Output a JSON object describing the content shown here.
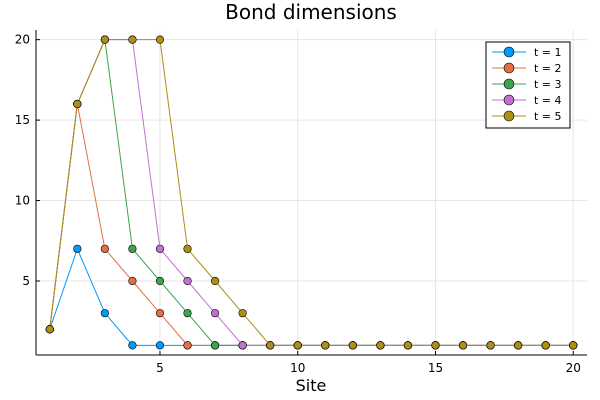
{
  "chart_data": {
    "type": "line",
    "title": "Bond dimensions",
    "xlabel": "Site",
    "ylabel": "",
    "xlim": [
      0.5,
      20.5
    ],
    "ylim": [
      0.4,
      20.6
    ],
    "xticks": [
      5,
      10,
      15,
      20
    ],
    "yticks": [
      5,
      10,
      15,
      20
    ],
    "grid": true,
    "legend_position": "top-right",
    "x": [
      1,
      2,
      3,
      4,
      5,
      6,
      7,
      8,
      9,
      10,
      11,
      12,
      13,
      14,
      15,
      16,
      17,
      18,
      19,
      20
    ],
    "series": [
      {
        "name": "t = 1",
        "color": "#009af9",
        "values": [
          2,
          7,
          3,
          1,
          1,
          1,
          1,
          1,
          1,
          1,
          1,
          1,
          1,
          1,
          1,
          1,
          1,
          1,
          1,
          1
        ]
      },
      {
        "name": "t = 2",
        "color": "#e26f46",
        "values": [
          2,
          16,
          7,
          5,
          3,
          1,
          1,
          1,
          1,
          1,
          1,
          1,
          1,
          1,
          1,
          1,
          1,
          1,
          1,
          1
        ]
      },
      {
        "name": "t = 3",
        "color": "#3da44d",
        "values": [
          2,
          16,
          20,
          7,
          5,
          3,
          1,
          1,
          1,
          1,
          1,
          1,
          1,
          1,
          1,
          1,
          1,
          1,
          1,
          1
        ]
      },
      {
        "name": "t = 4",
        "color": "#c271d2",
        "values": [
          2,
          16,
          20,
          20,
          7,
          5,
          3,
          1,
          1,
          1,
          1,
          1,
          1,
          1,
          1,
          1,
          1,
          1,
          1,
          1
        ]
      },
      {
        "name": "t = 5",
        "color": "#ac8e18",
        "values": [
          2,
          16,
          20,
          20,
          20,
          7,
          5,
          3,
          1,
          1,
          1,
          1,
          1,
          1,
          1,
          1,
          1,
          1,
          1,
          1
        ]
      }
    ]
  }
}
